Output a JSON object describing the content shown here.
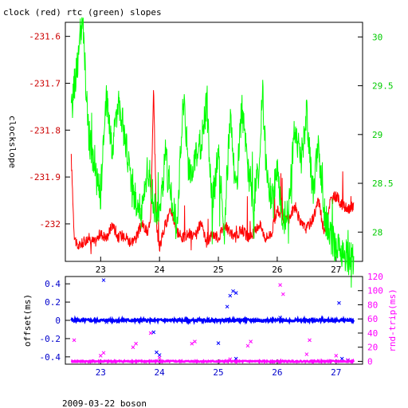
{
  "chart_data": [
    {
      "type": "line",
      "title": "clock (red) rtc (green) slopes",
      "ylabel": "clockslope",
      "x_ticks": [
        23,
        24,
        25,
        26,
        27
      ],
      "xlim": [
        22.4,
        27.45
      ],
      "ylim_left": [
        -232.08,
        -231.57
      ],
      "ylim_right": [
        27.7,
        30.15
      ],
      "left_ticks": [
        "-231.6",
        "-231.7",
        "-231.8",
        "-231.9",
        "-232"
      ],
      "right_ticks": [
        "30",
        "29.5",
        "29",
        "28.5",
        "28"
      ],
      "series": [
        {
          "color": "#ff0000",
          "axis": "left",
          "x": [
            22.5,
            22.55,
            22.6,
            22.7,
            22.8,
            22.9,
            23.0,
            23.1,
            23.2,
            23.3,
            23.4,
            23.5,
            23.6,
            23.7,
            23.8,
            23.85,
            23.9,
            23.95,
            24.0,
            24.1,
            24.2,
            24.3,
            24.4,
            24.5,
            24.6,
            24.7,
            24.8,
            24.9,
            25.0,
            25.1,
            25.2,
            25.3,
            25.4,
            25.5,
            25.6,
            25.7,
            25.8,
            25.9,
            26.0,
            26.1,
            26.2,
            26.3,
            26.4,
            26.5,
            26.6,
            26.7,
            26.8,
            26.9,
            27.0,
            27.1,
            27.2,
            27.3
          ],
          "y": [
            -231.86,
            -232.02,
            -232.05,
            -232.04,
            -232.03,
            -232.04,
            -232.02,
            -232.03,
            -232.0,
            -232.03,
            -232.02,
            -232.04,
            -232.03,
            -232.0,
            -232.02,
            -231.98,
            -231.71,
            -232.01,
            -232.05,
            -232.0,
            -231.97,
            -232.02,
            -232.03,
            -232.02,
            -232.03,
            -232.0,
            -232.04,
            -232.02,
            -232.03,
            -232.0,
            -232.02,
            -232.03,
            -232.01,
            -232.03,
            -232.02,
            -232.0,
            -232.03,
            -232.02,
            -231.97,
            -231.99,
            -231.99,
            -231.96,
            -232.0,
            -232.01,
            -231.99,
            -231.95,
            -232.02,
            -231.95,
            -231.94,
            -231.96,
            -231.97,
            -231.96
          ]
        },
        {
          "color": "#00ff00",
          "axis": "right",
          "x": [
            22.5,
            22.55,
            22.6,
            22.65,
            22.7,
            22.75,
            22.8,
            22.9,
            23.0,
            23.1,
            23.2,
            23.3,
            23.4,
            23.5,
            23.6,
            23.7,
            23.8,
            23.9,
            24.0,
            24.1,
            24.2,
            24.3,
            24.4,
            24.5,
            24.6,
            24.7,
            24.8,
            24.9,
            25.0,
            25.1,
            25.2,
            25.3,
            25.4,
            25.5,
            25.6,
            25.7,
            25.75,
            25.8,
            25.9,
            26.0,
            26.1,
            26.2,
            26.3,
            26.4,
            26.5,
            26.6,
            26.7,
            26.8,
            26.9,
            27.0,
            27.1,
            27.2,
            27.3
          ],
          "y": [
            29.2,
            29.5,
            29.7,
            30.0,
            30.1,
            29.5,
            29.0,
            28.6,
            28.4,
            29.4,
            28.8,
            29.4,
            29.0,
            28.6,
            28.3,
            28.2,
            28.7,
            28.3,
            28.1,
            28.8,
            28.4,
            28.0,
            29.4,
            28.6,
            28.7,
            28.9,
            29.3,
            28.3,
            28.8,
            28.0,
            29.2,
            28.4,
            29.3,
            28.6,
            28.3,
            28.7,
            29.5,
            28.8,
            28.3,
            28.6,
            28.1,
            28.3,
            29.1,
            28.7,
            29.2,
            28.4,
            28.9,
            28.2,
            27.95,
            27.85,
            27.8,
            27.75,
            27.72
          ]
        }
      ]
    },
    {
      "type": "scatter",
      "ylabel_left": "offset(ms)",
      "ylabel_right": "rnd-trip(ms)",
      "footer": "2009-03-22 boson",
      "x_ticks": [
        23,
        24,
        25,
        26,
        27
      ],
      "xlim": [
        22.4,
        27.45
      ],
      "ylim_left": [
        -0.48,
        0.48
      ],
      "ylim_right": [
        -4,
        120
      ],
      "left_ticks": [
        "0.4",
        "0.2",
        "0",
        "-0.2",
        "-0.4"
      ],
      "right_ticks": [
        "120",
        "100",
        "80",
        "60",
        "40",
        "20",
        "0"
      ],
      "series": [
        {
          "color": "#0000ff",
          "axis": "left",
          "baseline": 0.0,
          "outliers_x": [
            23.05,
            23.1,
            23.9,
            23.95,
            24.0,
            25.0,
            25.15,
            25.2,
            25.25,
            25.3,
            25.3,
            26.05,
            27.05,
            27.1,
            27.2
          ],
          "outliers_y": [
            0.44,
            -0.02,
            -0.13,
            -0.35,
            -0.38,
            -0.25,
            0.15,
            0.27,
            0.32,
            0.3,
            -0.42,
            0.03,
            0.19,
            -0.42,
            -0.44
          ]
        },
        {
          "color": "#ff00ff",
          "axis": "right",
          "baseline": 0.0,
          "outliers_x": [
            22.55,
            23.0,
            23.05,
            23.55,
            23.6,
            23.85,
            24.0,
            24.55,
            24.6,
            25.2,
            25.5,
            25.55,
            26.05,
            26.1,
            26.5,
            26.55,
            27.0,
            27.2
          ],
          "outliers_y": [
            30,
            8,
            12,
            20,
            25,
            40,
            5,
            25,
            28,
            3,
            22,
            28,
            108,
            95,
            10,
            30,
            8,
            2
          ]
        }
      ]
    }
  ]
}
